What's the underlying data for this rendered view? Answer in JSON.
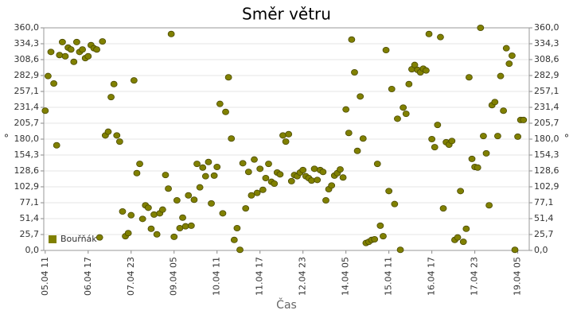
{
  "chart_data": {
    "type": "scatter",
    "title": "Směr větru",
    "xlabel": "Čas",
    "ylabel": "°",
    "y2label": "°",
    "x": [
      "05.04 11",
      "05.04 13",
      "05.04 15",
      "05.04 17",
      "05.04 19",
      "05.04 21",
      "05.04 23",
      "06.04 01",
      "06.04 03",
      "06.04 05",
      "06.04 07",
      "06.04 09",
      "06.04 11",
      "06.04 13",
      "06.04 15",
      "06.04 17",
      "06.04 19",
      "06.04 21",
      "06.04 23",
      "07.04 01",
      "07.04 03",
      "07.04 05",
      "07.04 07",
      "07.04 09",
      "07.04 11",
      "07.04 13",
      "07.04 15",
      "07.04 17",
      "07.04 19",
      "07.04 21",
      "07.04 23",
      "08.04 01",
      "08.04 03",
      "08.04 05",
      "08.04 07",
      "08.04 09",
      "08.04 11",
      "08.04 13",
      "08.04 15",
      "08.04 17",
      "08.04 19",
      "08.04 21",
      "08.04 23",
      "09.04 01",
      "09.04 03",
      "09.04 05",
      "09.04 07",
      "09.04 09",
      "09.04 11",
      "09.04 13",
      "09.04 15",
      "09.04 17",
      "09.04 19",
      "09.04 21",
      "09.04 23",
      "10.04 01",
      "10.04 03",
      "10.04 05",
      "10.04 07",
      "10.04 09",
      "10.04 11",
      "10.04 13",
      "10.04 15",
      "10.04 17",
      "10.04 19",
      "10.04 21",
      "10.04 23",
      "11.04 01",
      "11.04 03",
      "11.04 05",
      "11.04 07",
      "11.04 09",
      "11.04 11",
      "11.04 13",
      "11.04 15",
      "11.04 17",
      "11.04 19",
      "11.04 21",
      "11.04 23",
      "12.04 01",
      "12.04 03",
      "12.04 05",
      "12.04 07",
      "12.04 09",
      "12.04 11",
      "12.04 13",
      "12.04 15",
      "12.04 17",
      "12.04 19",
      "12.04 21",
      "12.04 23",
      "13.04 01",
      "13.04 03",
      "13.04 05",
      "13.04 07",
      "13.04 09",
      "13.04 11",
      "13.04 13",
      "13.04 15",
      "13.04 17",
      "13.04 19",
      "13.04 21",
      "13.04 23",
      "14.04 01",
      "14.04 03",
      "14.04 05",
      "14.04 07",
      "14.04 09",
      "14.04 11",
      "14.04 13",
      "14.04 15",
      "14.04 17",
      "14.04 19",
      "14.04 21",
      "14.04 23",
      "15.04 01",
      "15.04 03",
      "15.04 05",
      "15.04 07",
      "15.04 09",
      "15.04 11",
      "15.04 13",
      "15.04 15",
      "15.04 17",
      "15.04 19",
      "15.04 21",
      "15.04 23",
      "16.04 01",
      "16.04 03",
      "16.04 05",
      "16.04 07",
      "16.04 09",
      "16.04 11",
      "16.04 13",
      "16.04 15",
      "16.04 17",
      "16.04 19",
      "16.04 21",
      "16.04 23",
      "17.04 01",
      "17.04 03",
      "17.04 05",
      "17.04 07",
      "17.04 09",
      "17.04 11",
      "17.04 13",
      "17.04 15",
      "17.04 17",
      "17.04 19",
      "17.04 21",
      "17.04 23",
      "18.04 01",
      "18.04 03",
      "18.04 05",
      "18.04 07",
      "18.04 09",
      "18.04 11",
      "18.04 13",
      "18.04 15",
      "18.04 17",
      "18.04 19",
      "18.04 21",
      "18.04 23",
      "19.04 01",
      "19.04 03",
      "19.04 05",
      "19.04 07",
      "19.04 09"
    ],
    "series": [
      {
        "name": "Bouřňák",
        "color": "#808000",
        "values": [
          226,
          282,
          321,
          270,
          170,
          316,
          337,
          314,
          328,
          325,
          305,
          337,
          321,
          325,
          311,
          314,
          332,
          327,
          325,
          21,
          338,
          186,
          192,
          248,
          269,
          186,
          176,
          63,
          23,
          28,
          57,
          275,
          125,
          140,
          51,
          73,
          69,
          35,
          58,
          26,
          60,
          66,
          122,
          100,
          350,
          22,
          81,
          36,
          53,
          39,
          89,
          40,
          82,
          140,
          102,
          134,
          120,
          143,
          76,
          121,
          135,
          237,
          60,
          224,
          280,
          181,
          17,
          36,
          1,
          141,
          68,
          127,
          89,
          147,
          93,
          132,
          98,
          117,
          140,
          111,
          108,
          126,
          123,
          186,
          176,
          188,
          112,
          122,
          120,
          126,
          130,
          120,
          117,
          113,
          132,
          114,
          130,
          127,
          81,
          99,
          105,
          121,
          125,
          131,
          118,
          228,
          190,
          341,
          288,
          161,
          249,
          181,
          12,
          14,
          17,
          18,
          140,
          40,
          23,
          324,
          96,
          261,
          75,
          213,
          1,
          231,
          221,
          269,
          293,
          300,
          292,
          288,
          294,
          291,
          350,
          180,
          167,
          203,
          345,
          68,
          175,
          171,
          177,
          17,
          21,
          96,
          14,
          35,
          280,
          148,
          135,
          134,
          360,
          185,
          157,
          73,
          235,
          240,
          185,
          282,
          226,
          327,
          302,
          315,
          1,
          184,
          211,
          211
        ]
      }
    ],
    "xlim": [
      "05.04 10",
      "19.04 13"
    ],
    "xticks": [
      "05.04 11",
      "06.04 17",
      "07.04 23",
      "09.04 05",
      "10.04 11",
      "11.04 17",
      "12.04 23",
      "14.04 05",
      "15.04 11",
      "16.04 17",
      "17.04 23",
      "19.04 05"
    ],
    "ylim": [
      0,
      360
    ],
    "yticks": [
      {
        "value": 0,
        "label": "0,0"
      },
      {
        "value": 25.7,
        "label": "25,7"
      },
      {
        "value": 51.4,
        "label": "51,4"
      },
      {
        "value": 77.1,
        "label": "77,1"
      },
      {
        "value": 102.9,
        "label": "102,9"
      },
      {
        "value": 128.6,
        "label": "128,6"
      },
      {
        "value": 154.3,
        "label": "154,3"
      },
      {
        "value": 180,
        "label": "180,0"
      },
      {
        "value": 205.7,
        "label": "205,7"
      },
      {
        "value": 231.4,
        "label": "231,4"
      },
      {
        "value": 257.1,
        "label": "257,1"
      },
      {
        "value": 282.9,
        "label": "282,9"
      },
      {
        "value": 308.6,
        "label": "308,6"
      },
      {
        "value": 334.3,
        "label": "334,3"
      },
      {
        "value": 360,
        "label": "360,0"
      }
    ],
    "y2lim": [
      0,
      360
    ],
    "y2ticks": [
      {
        "value": 0,
        "label": "0,0"
      },
      {
        "value": 25.7,
        "label": "25,7"
      },
      {
        "value": 51.4,
        "label": "51,4"
      },
      {
        "value": 77.1,
        "label": "77,1"
      },
      {
        "value": 102.9,
        "label": "102,9"
      },
      {
        "value": 128.6,
        "label": "128,6"
      },
      {
        "value": 154.3,
        "label": "154,3"
      },
      {
        "value": 180,
        "label": "180,0"
      },
      {
        "value": 205.7,
        "label": "205,7"
      },
      {
        "value": 231.4,
        "label": "231,4"
      },
      {
        "value": 257.1,
        "label": "257,1"
      },
      {
        "value": 282.9,
        "label": "282,9"
      },
      {
        "value": 308.6,
        "label": "308,6"
      },
      {
        "value": 334.3,
        "label": "334,3"
      },
      {
        "value": 360,
        "label": "360,0"
      }
    ],
    "grid": true,
    "legend": "lower left"
  }
}
